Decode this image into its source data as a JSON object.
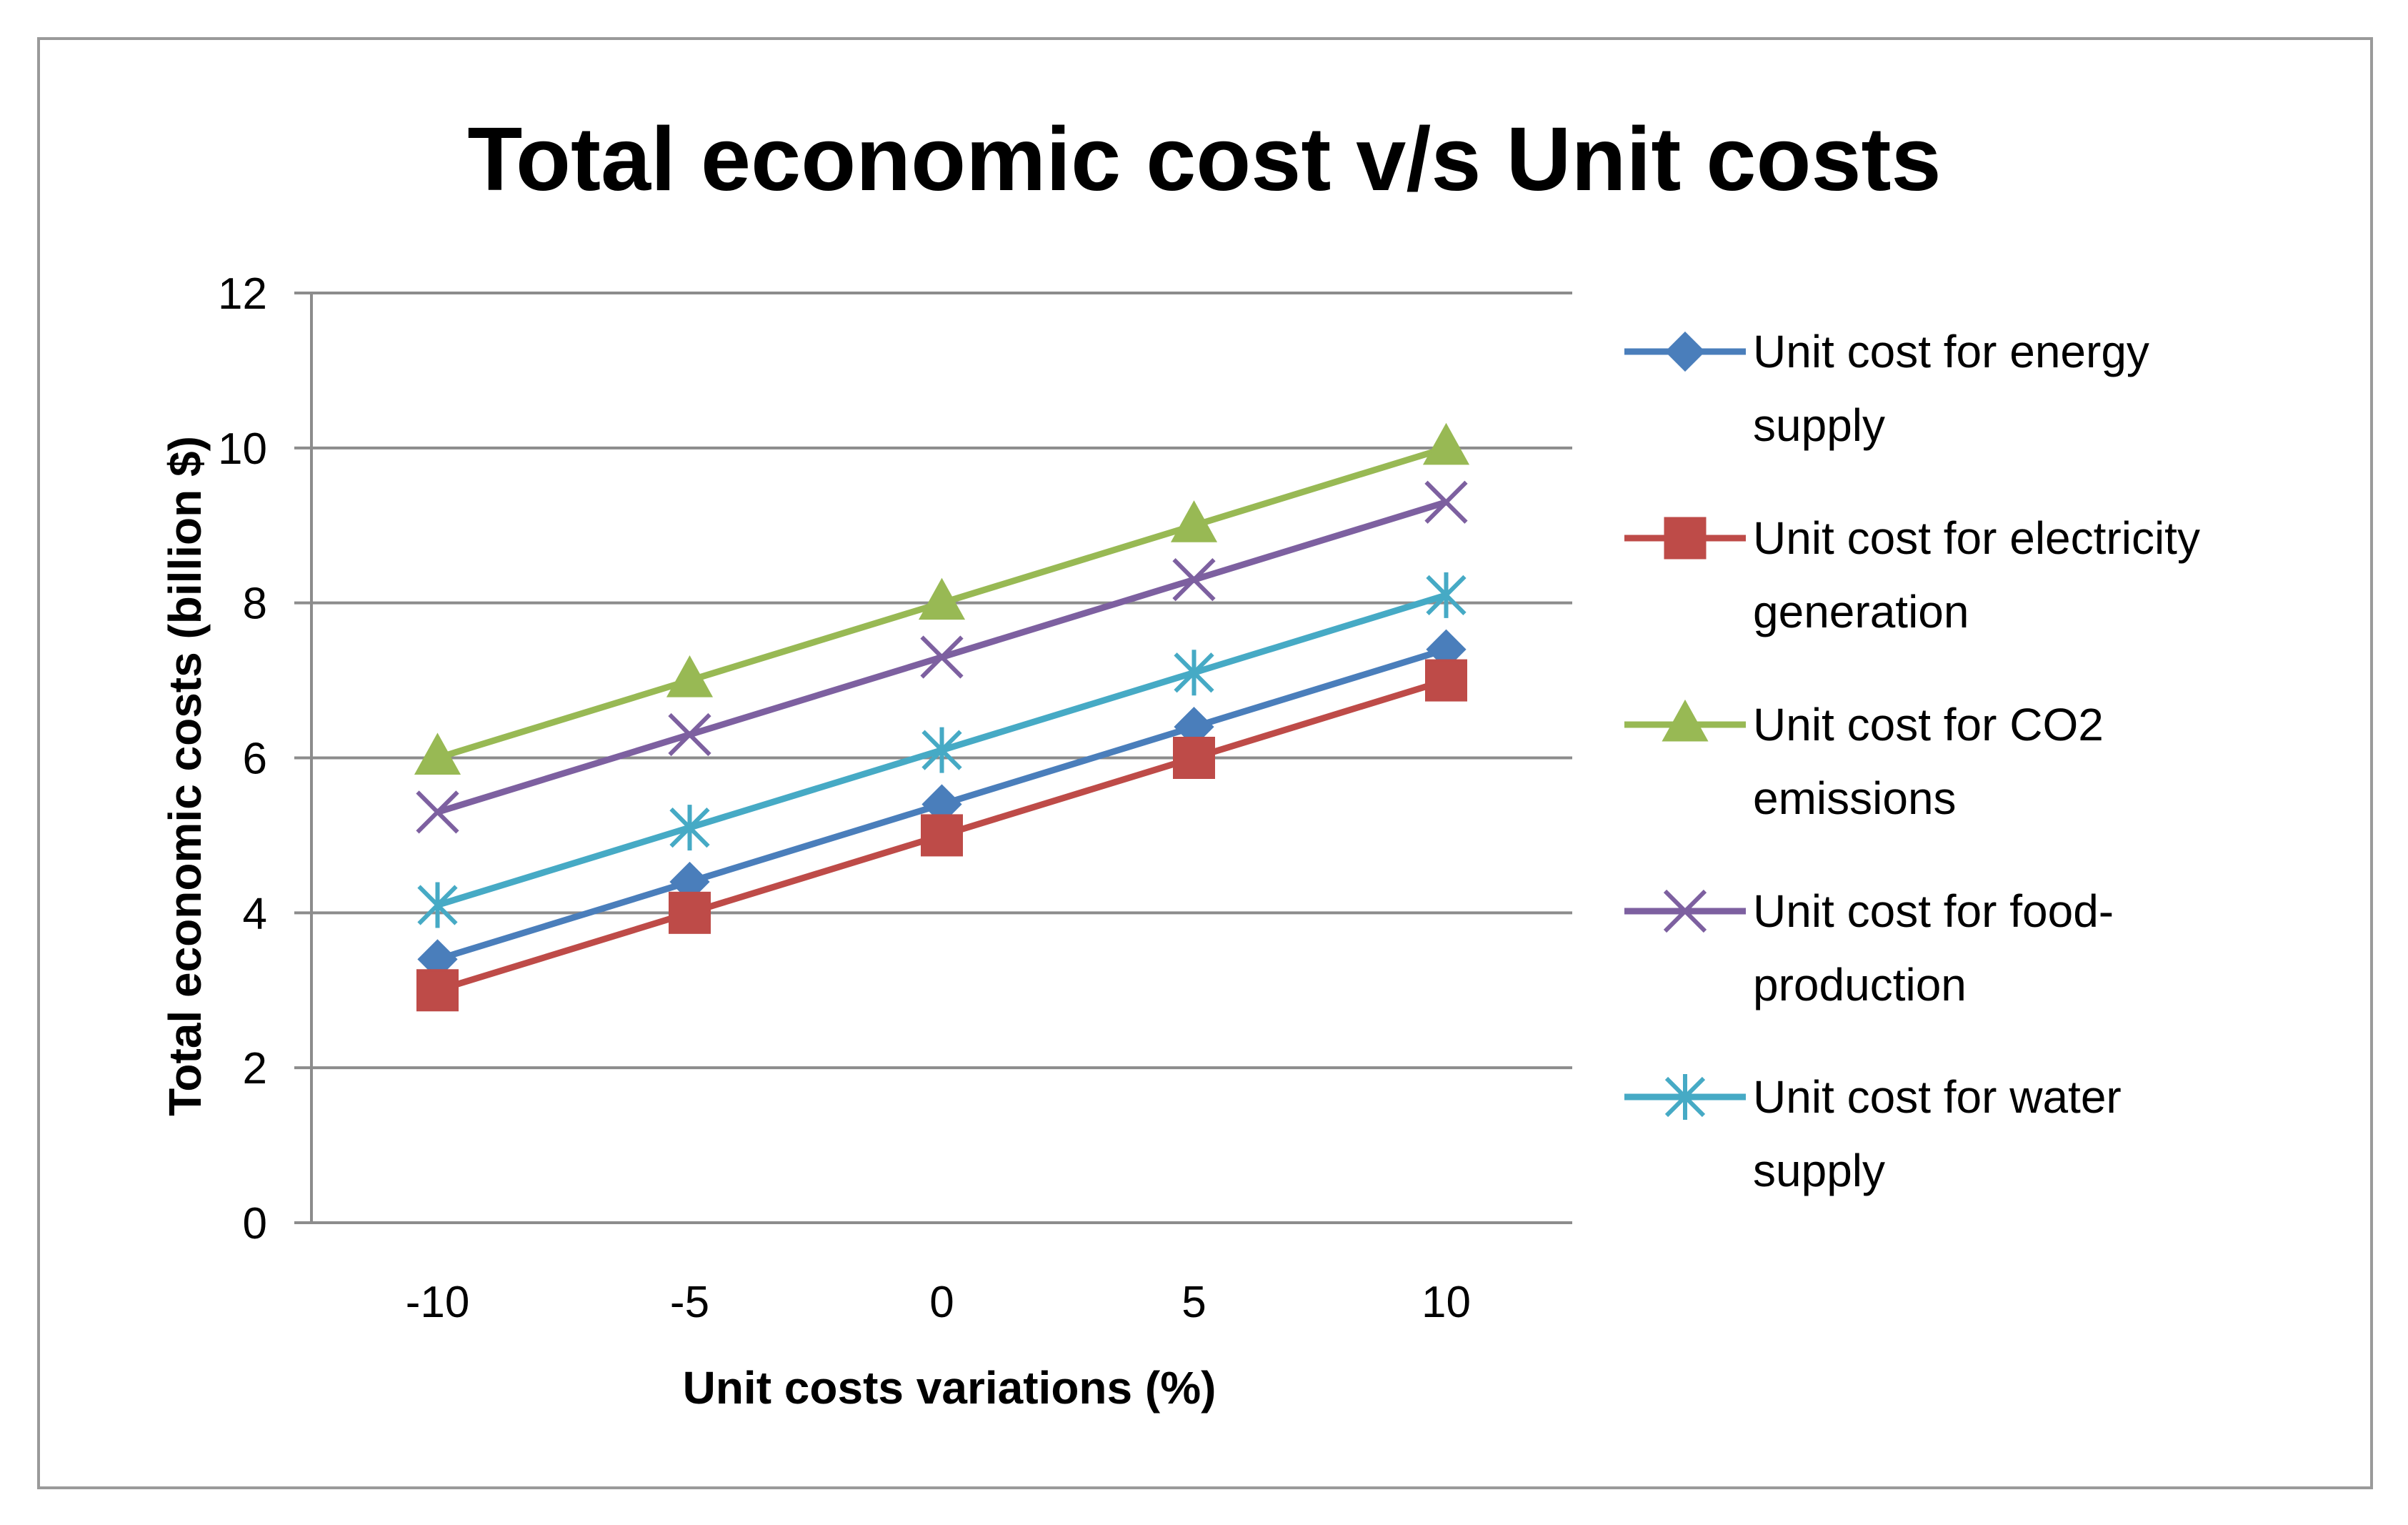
{
  "chart_data": {
    "type": "line",
    "title": "Total economic cost v/s Unit costs",
    "xlabel": "Unit costs variations (%)",
    "ylabel": "Total economic costs  (billion $)",
    "categories": [
      "-10",
      "-5",
      "0",
      "5",
      "10"
    ],
    "ylim": [
      0,
      12
    ],
    "yticks": [
      "0",
      "2",
      "4",
      "6",
      "8",
      "10",
      "12"
    ],
    "grid": true,
    "legend_position": "right",
    "series": [
      {
        "name": "Unit cost for energy supply",
        "legend_lines": [
          "Unit cost for energy",
          "supply"
        ],
        "values": [
          3.4,
          4.4,
          5.4,
          6.4,
          7.4
        ],
        "color": "#4a7ebb",
        "marker": "diamond"
      },
      {
        "name": "Unit cost for electricity generation",
        "legend_lines": [
          "Unit cost for electricity",
          "generation"
        ],
        "values": [
          3.0,
          4.0,
          5.0,
          6.0,
          7.0
        ],
        "color": "#be4b48",
        "marker": "square"
      },
      {
        "name": "Unit cost for CO2 emissions",
        "legend_lines": [
          "Unit cost for CO2",
          "emissions"
        ],
        "values": [
          6.0,
          7.0,
          8.0,
          9.0,
          10.0
        ],
        "color": "#98b954",
        "marker": "triangle"
      },
      {
        "name": "Unit cost for food-production",
        "legend_lines": [
          "Unit cost for food-",
          "production"
        ],
        "values": [
          5.3,
          6.3,
          7.3,
          8.3,
          9.3
        ],
        "color": "#7d60a0",
        "marker": "x"
      },
      {
        "name": "Unit cost for water supply",
        "legend_lines": [
          "Unit cost for water",
          "supply"
        ],
        "values": [
          4.1,
          5.1,
          6.1,
          7.1,
          8.1
        ],
        "color": "#46aac5",
        "marker": "star"
      }
    ]
  }
}
